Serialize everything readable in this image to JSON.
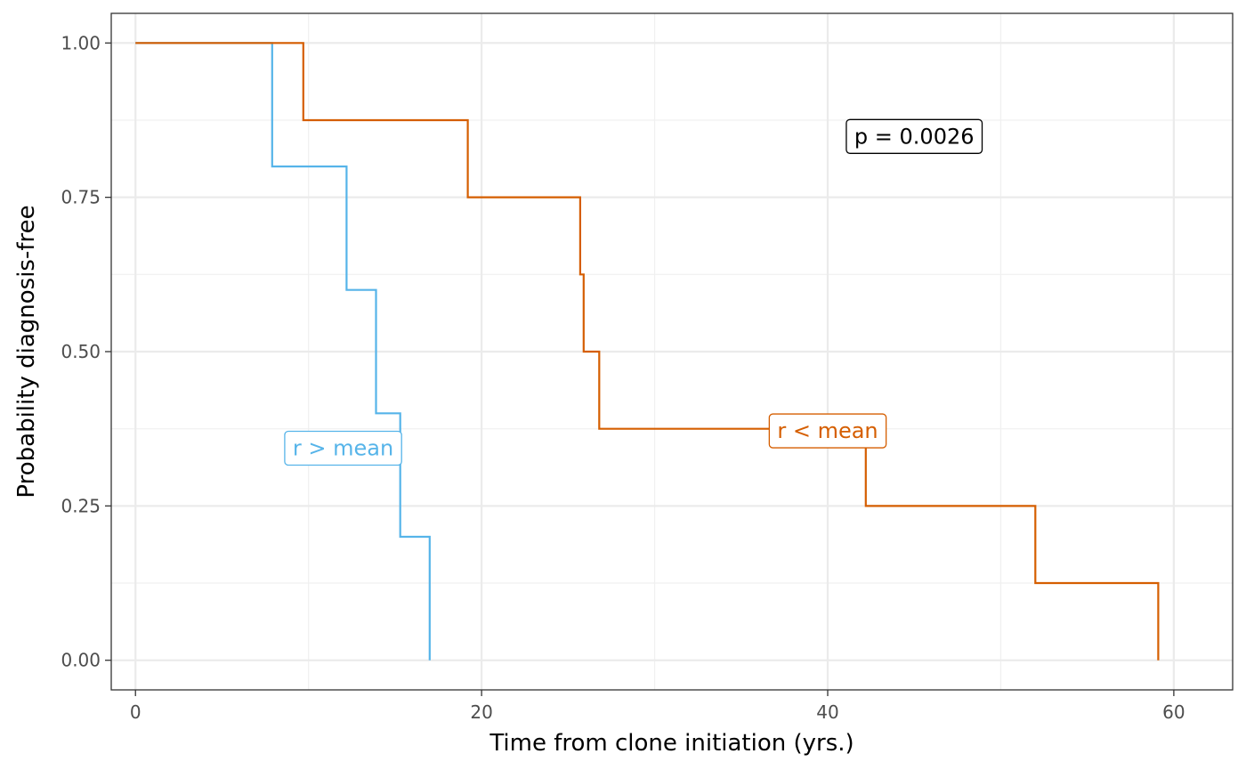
{
  "chart_data": {
    "type": "line",
    "step": true,
    "xlabel": "Time from clone initiation (yrs.)",
    "ylabel": "Probability diagnosis-free",
    "xlim": [
      -1.4,
      63.4
    ],
    "ylim": [
      -0.048,
      1.048
    ],
    "x_ticks": [
      0,
      20,
      40,
      60
    ],
    "x_tick_labels": [
      "0",
      "20",
      "40",
      "60"
    ],
    "y_ticks": [
      0,
      0.25,
      0.5,
      0.75,
      1.0
    ],
    "y_tick_labels": [
      "0.00",
      "0.25",
      "0.50",
      "0.75",
      "1.00"
    ],
    "grid": true,
    "series": [
      {
        "name": "r > mean",
        "color": "#56B4E9",
        "x": [
          0,
          7.9,
          7.9,
          12.2,
          12.2,
          13.9,
          13.9,
          15.3,
          15.3,
          17.0,
          17.0
        ],
        "y": [
          1.0,
          1.0,
          0.8,
          0.8,
          0.6,
          0.6,
          0.4,
          0.4,
          0.2,
          0.2,
          0.0
        ]
      },
      {
        "name": "r < mean",
        "color": "#D55E00",
        "x": [
          0,
          9.7,
          9.7,
          19.2,
          19.2,
          25.7,
          25.7,
          25.9,
          25.9,
          26.8,
          26.8,
          42.2,
          42.2,
          52.0,
          52.0,
          59.1,
          59.1
        ],
        "y": [
          1.0,
          1.0,
          0.875,
          0.875,
          0.75,
          0.75,
          0.625,
          0.625,
          0.5,
          0.5,
          0.375,
          0.375,
          0.25,
          0.25,
          0.125,
          0.125,
          0.0
        ]
      }
    ],
    "annotations": [
      {
        "text": "p = 0.0026",
        "x": 45.0,
        "y": 0.85,
        "color": "#000000"
      },
      {
        "text": "r > mean",
        "x": 12.0,
        "y": 0.345,
        "color": "#56B4E9"
      },
      {
        "text": "r < mean",
        "x": 40.0,
        "y": 0.373,
        "color": "#D55E00"
      }
    ]
  }
}
